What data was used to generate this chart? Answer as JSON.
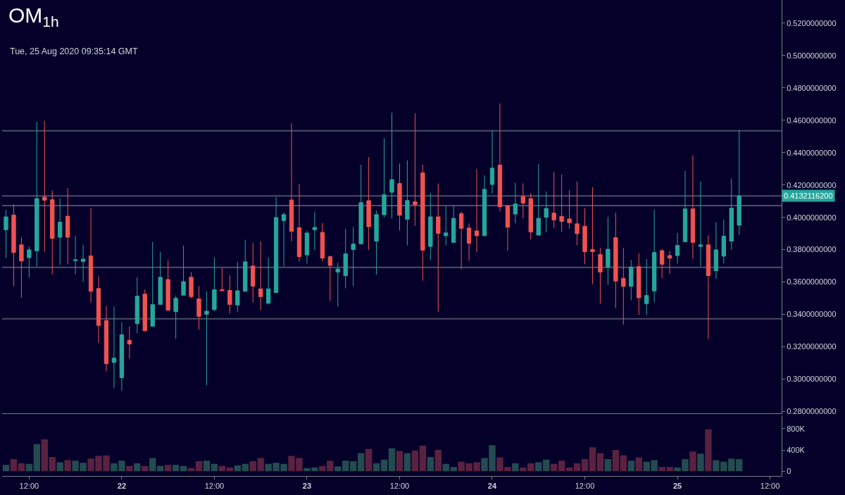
{
  "chart_data": [
    {
      "type": "candlestick",
      "title": "OM$_{1h}$",
      "subtitle": "Tue, 25 Aug 2020 09:35:14 GMT",
      "x": [
        "2020-08-21T09:00",
        "2020-08-21T10:00",
        "2020-08-21T11:00",
        "2020-08-21T12:00",
        "2020-08-21T13:00",
        "2020-08-21T14:00",
        "2020-08-21T15:00",
        "2020-08-21T16:00",
        "2020-08-21T17:00",
        "2020-08-21T18:00",
        "2020-08-21T19:00",
        "2020-08-21T20:00",
        "2020-08-21T21:00",
        "2020-08-21T22:00",
        "2020-08-21T23:00",
        "2020-08-22T00:00",
        "2020-08-22T01:00",
        "2020-08-22T02:00",
        "2020-08-22T03:00",
        "2020-08-22T04:00",
        "2020-08-22T05:00",
        "2020-08-22T06:00",
        "2020-08-22T07:00",
        "2020-08-22T08:00",
        "2020-08-22T09:00",
        "2020-08-22T10:00",
        "2020-08-22T11:00",
        "2020-08-22T12:00",
        "2020-08-22T13:00",
        "2020-08-22T14:00",
        "2020-08-22T15:00",
        "2020-08-22T16:00",
        "2020-08-22T17:00",
        "2020-08-22T18:00",
        "2020-08-22T19:00",
        "2020-08-22T20:00",
        "2020-08-22T21:00",
        "2020-08-22T22:00",
        "2020-08-22T23:00",
        "2020-08-23T00:00",
        "2020-08-23T01:00",
        "2020-08-23T02:00",
        "2020-08-23T03:00",
        "2020-08-23T04:00",
        "2020-08-23T05:00",
        "2020-08-23T06:00",
        "2020-08-23T07:00",
        "2020-08-23T08:00",
        "2020-08-23T09:00",
        "2020-08-23T10:00",
        "2020-08-23T11:00",
        "2020-08-23T12:00",
        "2020-08-23T13:00",
        "2020-08-23T14:00",
        "2020-08-23T15:00",
        "2020-08-23T16:00",
        "2020-08-23T17:00",
        "2020-08-23T18:00",
        "2020-08-23T19:00",
        "2020-08-23T20:00",
        "2020-08-23T21:00",
        "2020-08-23T22:00",
        "2020-08-23T23:00",
        "2020-08-24T00:00",
        "2020-08-24T01:00",
        "2020-08-24T02:00",
        "2020-08-24T03:00",
        "2020-08-24T04:00",
        "2020-08-24T05:00",
        "2020-08-24T06:00",
        "2020-08-24T07:00",
        "2020-08-24T08:00",
        "2020-08-24T09:00",
        "2020-08-24T10:00",
        "2020-08-24T11:00",
        "2020-08-24T12:00",
        "2020-08-24T13:00",
        "2020-08-24T14:00",
        "2020-08-24T15:00",
        "2020-08-24T16:00",
        "2020-08-24T17:00",
        "2020-08-24T18:00",
        "2020-08-24T19:00",
        "2020-08-24T20:00",
        "2020-08-24T21:00",
        "2020-08-24T22:00",
        "2020-08-24T23:00",
        "2020-08-25T00:00",
        "2020-08-25T01:00",
        "2020-08-25T02:00",
        "2020-08-25T03:00",
        "2020-08-25T04:00",
        "2020-08-25T05:00",
        "2020-08-25T06:00",
        "2020-08-25T07:00",
        "2020-08-25T08:00"
      ],
      "ohlc": [
        [
          0.3923,
          0.4047,
          0.3749,
          0.4003
        ],
        [
          0.4014,
          0.408,
          0.3575,
          0.3783
        ],
        [
          0.383,
          0.3877,
          0.3503,
          0.373
        ],
        [
          0.3751,
          0.3819,
          0.3629,
          0.3799
        ],
        [
          0.3793,
          0.459,
          0.3696,
          0.4116
        ],
        [
          0.4125,
          0.4597,
          0.3788,
          0.4106
        ],
        [
          0.4109,
          0.4165,
          0.3648,
          0.387
        ],
        [
          0.3877,
          0.4116,
          0.3706,
          0.397
        ],
        [
          0.4007,
          0.4181,
          0.371,
          0.3877
        ],
        [
          0.3732,
          0.3884,
          0.3648,
          0.3738
        ],
        [
          0.3727,
          0.383,
          0.3601,
          0.3742
        ],
        [
          0.3762,
          0.4057,
          0.3474,
          0.3543
        ],
        [
          0.356,
          0.3636,
          0.3225,
          0.3332
        ],
        [
          0.3362,
          0.3452,
          0.3049,
          0.3096
        ],
        [
          0.3103,
          0.3448,
          0.2945,
          0.313
        ],
        [
          0.3009,
          0.3351,
          0.2927,
          0.3274
        ],
        [
          0.324,
          0.3326,
          0.3126,
          0.3217
        ],
        [
          0.3343,
          0.3629,
          0.3283,
          0.3513
        ],
        [
          0.3526,
          0.3555,
          0.3299,
          0.3299
        ],
        [
          0.3327,
          0.3848,
          0.3327,
          0.3461
        ],
        [
          0.3462,
          0.3786,
          0.346,
          0.363
        ],
        [
          0.3616,
          0.3733,
          0.3426,
          0.3426
        ],
        [
          0.3417,
          0.3517,
          0.3249,
          0.35
        ],
        [
          0.3519,
          0.3826,
          0.3519,
          0.3603
        ],
        [
          0.363,
          0.3661,
          0.3499,
          0.351
        ],
        [
          0.3496,
          0.3574,
          0.3307,
          0.3388
        ],
        [
          0.3401,
          0.3542,
          0.2962,
          0.342
        ],
        [
          0.343,
          0.3753,
          0.3419,
          0.3553
        ],
        [
          0.3553,
          0.3688,
          0.3546,
          0.3546
        ],
        [
          0.3549,
          0.3643,
          0.3406,
          0.3462
        ],
        [
          0.3458,
          0.3725,
          0.3413,
          0.3546
        ],
        [
          0.3543,
          0.3861,
          0.3543,
          0.3725
        ],
        [
          0.3699,
          0.3843,
          0.3474,
          0.3575
        ],
        [
          0.3558,
          0.3852,
          0.3426,
          0.351
        ],
        [
          0.347,
          0.3753,
          0.3462,
          0.3558
        ],
        [
          0.3535,
          0.4126,
          0.3535,
          0.3999
        ],
        [
          0.398,
          0.403,
          0.3697,
          0.4017
        ],
        [
          0.4107,
          0.4581,
          0.3851,
          0.3914
        ],
        [
          0.3936,
          0.4206,
          0.3727,
          0.3757
        ],
        [
          0.3768,
          0.3917,
          0.3714,
          0.3903
        ],
        [
          0.3923,
          0.4035,
          0.3797,
          0.3938
        ],
        [
          0.3907,
          0.3965,
          0.3727,
          0.3748
        ],
        [
          0.3757,
          0.3764,
          0.3483,
          0.3703
        ],
        [
          0.3662,
          0.372,
          0.3449,
          0.3681
        ],
        [
          0.364,
          0.3929,
          0.3561,
          0.3774
        ],
        [
          0.3801,
          0.394,
          0.3575,
          0.3835
        ],
        [
          0.3836,
          0.4325,
          0.3836,
          0.4091
        ],
        [
          0.4103,
          0.4373,
          0.3797,
          0.3942
        ],
        [
          0.3853,
          0.4042,
          0.3645,
          0.4017
        ],
        [
          0.4016,
          0.449,
          0.4,
          0.414
        ],
        [
          0.4155,
          0.4647,
          0.3993,
          0.4233
        ],
        [
          0.4209,
          0.4333,
          0.3919,
          0.4013
        ],
        [
          0.3988,
          0.4352,
          0.3827,
          0.4104
        ],
        [
          0.4096,
          0.4643,
          0.3948,
          0.4078
        ],
        [
          0.4275,
          0.4325,
          0.3609,
          0.3797
        ],
        [
          0.382,
          0.4152,
          0.3735,
          0.4003
        ],
        [
          0.4003,
          0.421,
          0.3416,
          0.3901
        ],
        [
          0.3886,
          0.4068,
          0.3827,
          0.3904
        ],
        [
          0.3845,
          0.4075,
          0.3845,
          0.3994
        ],
        [
          0.4023,
          0.4035,
          0.3678,
          0.3932
        ],
        [
          0.3934,
          0.3962,
          0.3732,
          0.384
        ],
        [
          0.3916,
          0.43,
          0.3784,
          0.3886
        ],
        [
          0.3886,
          0.426,
          0.3886,
          0.4173
        ],
        [
          0.4203,
          0.4536,
          0.4147,
          0.4304
        ],
        [
          0.4323,
          0.4704,
          0.4036,
          0.4065
        ],
        [
          0.4071,
          0.4075,
          0.3793,
          0.3939
        ],
        [
          0.402,
          0.4213,
          0.3962,
          0.4083
        ],
        [
          0.4129,
          0.421,
          0.3993,
          0.4088
        ],
        [
          0.4116,
          0.4149,
          0.3862,
          0.391
        ],
        [
          0.389,
          0.4329,
          0.389,
          0.3994
        ],
        [
          0.4,
          0.416,
          0.3909,
          0.4055
        ],
        [
          0.4026,
          0.428,
          0.3936,
          0.3984
        ],
        [
          0.4006,
          0.4264,
          0.391,
          0.3975
        ],
        [
          0.399,
          0.4168,
          0.393,
          0.3967
        ],
        [
          0.396,
          0.4222,
          0.3827,
          0.3899
        ],
        [
          0.3945,
          0.4057,
          0.371,
          0.3788
        ],
        [
          0.3802,
          0.4186,
          0.3588,
          0.3788
        ],
        [
          0.377,
          0.3812,
          0.3467,
          0.3662
        ],
        [
          0.3691,
          0.4003,
          0.3583,
          0.3803
        ],
        [
          0.3875,
          0.4029,
          0.3438,
          0.3606
        ],
        [
          0.3623,
          0.3812,
          0.3336,
          0.3573
        ],
        [
          0.3573,
          0.3738,
          0.3487,
          0.3693
        ],
        [
          0.3696,
          0.3778,
          0.3397,
          0.3503
        ],
        [
          0.3467,
          0.3742,
          0.3397,
          0.3517
        ],
        [
          0.3545,
          0.4047,
          0.3474,
          0.3783
        ],
        [
          0.3794,
          0.3804,
          0.3625,
          0.371
        ],
        [
          0.3764,
          0.3791,
          0.3651,
          0.3748
        ],
        [
          0.3764,
          0.3904,
          0.3714,
          0.3826
        ],
        [
          0.3849,
          0.4287,
          0.3849,
          0.4052
        ],
        [
          0.4052,
          0.4383,
          0.3743,
          0.3845
        ],
        [
          0.382,
          0.4222,
          0.3697,
          0.383
        ],
        [
          0.383,
          0.3888,
          0.3249,
          0.364
        ],
        [
          0.367,
          0.397,
          0.3619,
          0.3799
        ],
        [
          0.376,
          0.3986,
          0.3714,
          0.3884
        ],
        [
          0.3853,
          0.4239,
          0.38,
          0.4057
        ],
        [
          0.3951,
          0.454,
          0.389,
          0.4132
        ]
      ],
      "colors": [
        "#26a69a",
        "#ef5350",
        "#ef5350",
        "#26a69a",
        "#26a69a",
        "#ef5350",
        "#ef5350",
        "#26a69a",
        "#ef5350",
        "#26a69a",
        "#26a69a",
        "#ef5350",
        "#ef5350",
        "#ef5350",
        "#26a69a",
        "#26a69a",
        "#ef5350",
        "#26a69a",
        "#ef5350",
        "#26a69a",
        "#26a69a",
        "#ef5350",
        "#26a69a",
        "#26a69a",
        "#ef5350",
        "#ef5350",
        "#26a69a",
        "#26a69a",
        "#ef5350",
        "#ef5350",
        "#26a69a",
        "#26a69a",
        "#ef5350",
        "#ef5350",
        "#26a69a",
        "#26a69a",
        "#26a69a",
        "#ef5350",
        "#ef5350",
        "#26a69a",
        "#26a69a",
        "#ef5350",
        "#ef5350",
        "#26a69a",
        "#26a69a",
        "#26a69a",
        "#26a69a",
        "#ef5350",
        "#26a69a",
        "#26a69a",
        "#26a69a",
        "#ef5350",
        "#26a69a",
        "#ef5350",
        "#ef5350",
        "#26a69a",
        "#ef5350",
        "#26a69a",
        "#26a69a",
        "#ef5350",
        "#ef5350",
        "#ef5350",
        "#26a69a",
        "#26a69a",
        "#ef5350",
        "#ef5350",
        "#26a69a",
        "#ef5350",
        "#ef5350",
        "#26a69a",
        "#26a69a",
        "#ef5350",
        "#ef5350",
        "#ef5350",
        "#ef5350",
        "#ef5350",
        "#ef5350",
        "#ef5350",
        "#26a69a",
        "#ef5350",
        "#ef5350",
        "#26a69a",
        "#ef5350",
        "#26a69a",
        "#26a69a",
        "#ef5350",
        "#ef5350",
        "#26a69a",
        "#26a69a",
        "#ef5350",
        "#26a69a",
        "#ef5350",
        "#26a69a",
        "#26a69a",
        "#26a69a",
        "#26a69a"
      ],
      "xlim": [
        "2020-08-21T08:30",
        "2020-08-25T13:30"
      ],
      "ylim": [
        0.2787,
        0.5343
      ],
      "yticks": [
        {
          "value": 0.28,
          "label": "0.2800000000"
        },
        {
          "value": 0.3,
          "label": "0.3000000000"
        },
        {
          "value": 0.32,
          "label": "0.3200000000"
        },
        {
          "value": 0.34,
          "label": "0.3400000000"
        },
        {
          "value": 0.36,
          "label": "0.3600000000"
        },
        {
          "value": 0.38,
          "label": "0.3800000000"
        },
        {
          "value": 0.4,
          "label": "0.4000000000"
        },
        {
          "value": 0.42,
          "label": "0.4200000000"
        },
        {
          "value": 0.44,
          "label": "0.4400000000"
        },
        {
          "value": 0.46,
          "label": "0.4600000000"
        },
        {
          "value": 0.48,
          "label": "0.4800000000"
        },
        {
          "value": 0.5,
          "label": "0.5000000000"
        },
        {
          "value": 0.52,
          "label": "0.5200000000"
        }
      ],
      "ref_lines": [
        {
          "axis": "y",
          "value": 0.4535,
          "color": "#4b4c66"
        },
        {
          "axis": "y",
          "value": 0.41321162,
          "label": "0.4132116200",
          "color": "#4b4c66"
        },
        {
          "axis": "y",
          "value": 0.4073,
          "color": "#4b4c66"
        },
        {
          "axis": "y",
          "value": 0.3691,
          "color": "#4b4c66"
        },
        {
          "axis": "y",
          "value": 0.3373,
          "color": "#4b4c66"
        }
      ],
      "tick_labels": "y"
    },
    {
      "type": "bar",
      "x": [
        "2020-08-21T09:00",
        "2020-08-21T10:00",
        "2020-08-21T11:00",
        "2020-08-21T12:00",
        "2020-08-21T13:00",
        "2020-08-21T14:00",
        "2020-08-21T15:00",
        "2020-08-21T16:00",
        "2020-08-21T17:00",
        "2020-08-21T18:00",
        "2020-08-21T19:00",
        "2020-08-21T20:00",
        "2020-08-21T21:00",
        "2020-08-21T22:00",
        "2020-08-21T23:00",
        "2020-08-22T00:00",
        "2020-08-22T01:00",
        "2020-08-22T02:00",
        "2020-08-22T03:00",
        "2020-08-22T04:00",
        "2020-08-22T05:00",
        "2020-08-22T06:00",
        "2020-08-22T07:00",
        "2020-08-22T08:00",
        "2020-08-22T09:00",
        "2020-08-22T10:00",
        "2020-08-22T11:00",
        "2020-08-22T12:00",
        "2020-08-22T13:00",
        "2020-08-22T14:00",
        "2020-08-22T15:00",
        "2020-08-22T16:00",
        "2020-08-22T17:00",
        "2020-08-22T18:00",
        "2020-08-22T19:00",
        "2020-08-22T20:00",
        "2020-08-22T21:00",
        "2020-08-22T22:00",
        "2020-08-22T23:00",
        "2020-08-23T00:00",
        "2020-08-23T01:00",
        "2020-08-23T02:00",
        "2020-08-23T03:00",
        "2020-08-23T04:00",
        "2020-08-23T05:00",
        "2020-08-23T06:00",
        "2020-08-23T07:00",
        "2020-08-23T08:00",
        "2020-08-23T09:00",
        "2020-08-23T10:00",
        "2020-08-23T11:00",
        "2020-08-23T12:00",
        "2020-08-23T13:00",
        "2020-08-23T14:00",
        "2020-08-23T15:00",
        "2020-08-23T16:00",
        "2020-08-23T17:00",
        "2020-08-23T18:00",
        "2020-08-23T19:00",
        "2020-08-23T20:00",
        "2020-08-23T21:00",
        "2020-08-23T22:00",
        "2020-08-23T23:00",
        "2020-08-24T00:00",
        "2020-08-24T01:00",
        "2020-08-24T02:00",
        "2020-08-24T03:00",
        "2020-08-24T04:00",
        "2020-08-24T05:00",
        "2020-08-24T06:00",
        "2020-08-24T07:00",
        "2020-08-24T08:00",
        "2020-08-24T09:00",
        "2020-08-24T10:00",
        "2020-08-24T11:00",
        "2020-08-24T12:00",
        "2020-08-24T13:00",
        "2020-08-24T14:00",
        "2020-08-24T15:00",
        "2020-08-24T16:00",
        "2020-08-24T17:00",
        "2020-08-24T18:00",
        "2020-08-24T19:00",
        "2020-08-24T20:00",
        "2020-08-24T21:00",
        "2020-08-24T22:00",
        "2020-08-24T23:00",
        "2020-08-25T00:00",
        "2020-08-25T01:00",
        "2020-08-25T02:00",
        "2020-08-25T03:00",
        "2020-08-25T04:00",
        "2020-08-25T05:00",
        "2020-08-25T06:00",
        "2020-08-25T07:00",
        "2020-08-25T08:00"
      ],
      "values": [
        120000,
        230000,
        150000,
        140000,
        510000,
        600000,
        270000,
        170000,
        210000,
        200000,
        160000,
        240000,
        290000,
        300000,
        150000,
        200000,
        100000,
        150000,
        100000,
        250000,
        100000,
        120000,
        120000,
        100000,
        60000,
        190000,
        200000,
        140000,
        100000,
        70000,
        110000,
        140000,
        190000,
        250000,
        140000,
        160000,
        140000,
        290000,
        250000,
        60000,
        70000,
        100000,
        200000,
        90000,
        200000,
        190000,
        340000,
        420000,
        150000,
        220000,
        430000,
        380000,
        340000,
        390000,
        480000,
        270000,
        400000,
        140000,
        80000,
        180000,
        150000,
        170000,
        250000,
        490000,
        260000,
        80000,
        150000,
        70000,
        150000,
        170000,
        220000,
        140000,
        200000,
        70000,
        150000,
        230000,
        450000,
        340000,
        230000,
        400000,
        300000,
        200000,
        260000,
        180000,
        210000,
        80000,
        80000,
        70000,
        230000,
        370000,
        330000,
        790000,
        210000,
        180000,
        240000,
        230000
      ],
      "colors": [
        "#244b50",
        "#5a2240",
        "#5a2240",
        "#244b50",
        "#244b50",
        "#5a2240",
        "#5a2240",
        "#244b50",
        "#5a2240",
        "#244b50",
        "#244b50",
        "#5a2240",
        "#5a2240",
        "#5a2240",
        "#244b50",
        "#244b50",
        "#5a2240",
        "#244b50",
        "#5a2240",
        "#244b50",
        "#244b50",
        "#5a2240",
        "#244b50",
        "#244b50",
        "#5a2240",
        "#5a2240",
        "#244b50",
        "#244b50",
        "#5a2240",
        "#5a2240",
        "#244b50",
        "#244b50",
        "#5a2240",
        "#5a2240",
        "#244b50",
        "#244b50",
        "#244b50",
        "#5a2240",
        "#5a2240",
        "#244b50",
        "#244b50",
        "#5a2240",
        "#5a2240",
        "#244b50",
        "#244b50",
        "#244b50",
        "#244b50",
        "#5a2240",
        "#244b50",
        "#244b50",
        "#244b50",
        "#5a2240",
        "#244b50",
        "#5a2240",
        "#5a2240",
        "#244b50",
        "#5a2240",
        "#244b50",
        "#244b50",
        "#5a2240",
        "#5a2240",
        "#5a2240",
        "#244b50",
        "#244b50",
        "#5a2240",
        "#5a2240",
        "#244b50",
        "#5a2240",
        "#5a2240",
        "#244b50",
        "#244b50",
        "#5a2240",
        "#5a2240",
        "#5a2240",
        "#5a2240",
        "#5a2240",
        "#5a2240",
        "#5a2240",
        "#244b50",
        "#5a2240",
        "#5a2240",
        "#244b50",
        "#5a2240",
        "#244b50",
        "#244b50",
        "#5a2240",
        "#5a2240",
        "#244b50",
        "#244b50",
        "#5a2240",
        "#244b50",
        "#5a2240",
        "#244b50",
        "#244b50",
        "#244b50",
        "#244b50"
      ],
      "xlim": [
        "2020-08-21T08:30",
        "2020-08-25T13:30"
      ],
      "xticks": [
        {
          "value": "2020-08-21T12:00",
          "label": "12:00"
        },
        {
          "value": "2020-08-22",
          "label": "22"
        },
        {
          "value": "2020-08-22T12:00",
          "label": "12:00"
        },
        {
          "value": "2020-08-23",
          "label": "23"
        },
        {
          "value": "2020-08-23T12:00",
          "label": "12:00"
        },
        {
          "value": "2020-08-24",
          "label": "24"
        },
        {
          "value": "2020-08-24T12:00",
          "label": "12:00"
        },
        {
          "value": "2020-08-25",
          "label": "25"
        },
        {
          "value": "2020-08-25T12:00",
          "label": "12:00"
        }
      ],
      "ylim": [
        -90000,
        1050000
      ],
      "yticks": [
        0,
        {
          "value": 400000,
          "label": "400K"
        },
        {
          "value": 800000,
          "label": "800K"
        }
      ]
    }
  ]
}
